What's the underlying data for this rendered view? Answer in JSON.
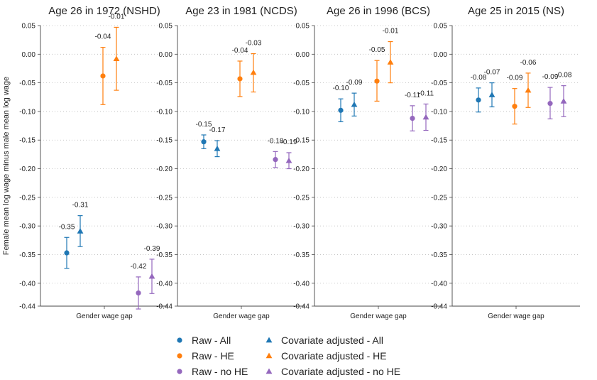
{
  "chart_data": {
    "type": "scatter",
    "subtype": "point estimates with 95% confidence intervals",
    "ylabel": "Female mean log wage minus male mean log wage",
    "xlabel": "Gender wage gap",
    "ylim": [
      -0.44,
      0.05
    ],
    "yticks": [
      0.05,
      0.0,
      -0.05,
      -0.1,
      -0.15,
      -0.2,
      -0.25,
      -0.3,
      -0.35,
      -0.4,
      -0.44
    ],
    "ytick_labels": [
      "0.05",
      "0.00",
      "-0.05",
      "-0.10",
      "-0.15",
      "-0.20",
      "-0.25",
      "-0.30",
      "-0.35",
      "-0.40",
      "-0.44"
    ],
    "grid": "horizontal dotted",
    "legend_position": "bottom",
    "series_styles": [
      {
        "name": "Raw - All",
        "color": "#1f77b4",
        "marker": "circle"
      },
      {
        "name": "Covariate adjusted - All",
        "color": "#1f77b4",
        "marker": "triangle"
      },
      {
        "name": "Raw - HE",
        "color": "#ff7f0e",
        "marker": "circle"
      },
      {
        "name": "Covariate adjusted - HE",
        "color": "#ff7f0e",
        "marker": "triangle"
      },
      {
        "name": "Raw - no HE",
        "color": "#9467bd",
        "marker": "circle"
      },
      {
        "name": "Covariate adjusted - no HE",
        "color": "#9467bd",
        "marker": "triangle"
      }
    ],
    "panels": [
      {
        "title": "Age 26 in 1972 (NSHD)",
        "points": [
          {
            "series": "Raw - All",
            "value": -0.347,
            "ci": [
              -0.374,
              -0.32
            ],
            "label": "-0.35"
          },
          {
            "series": "Covariate adjusted - All",
            "value": -0.309,
            "ci": [
              -0.336,
              -0.282
            ],
            "label": "-0.31"
          },
          {
            "series": "Raw - HE",
            "value": -0.038,
            "ci": [
              -0.088,
              0.012
            ],
            "label": "-0.04"
          },
          {
            "series": "Covariate adjusted - HE",
            "value": -0.008,
            "ci": [
              -0.063,
              0.047
            ],
            "label": "-0.01"
          },
          {
            "series": "Raw - no HE",
            "value": -0.417,
            "ci": [
              -0.445,
              -0.389
            ],
            "label": "-0.42"
          },
          {
            "series": "Covariate adjusted - no HE",
            "value": -0.388,
            "ci": [
              -0.418,
              -0.358
            ],
            "label": "-0.39"
          }
        ]
      },
      {
        "title": "Age 23 in 1981 (NCDS)",
        "points": [
          {
            "series": "Raw - All",
            "value": -0.153,
            "ci": [
              -0.165,
              -0.141
            ],
            "label": "-0.15"
          },
          {
            "series": "Covariate adjusted - All",
            "value": -0.165,
            "ci": [
              -0.179,
              -0.151
            ],
            "label": "-0.17"
          },
          {
            "series": "Raw - HE",
            "value": -0.043,
            "ci": [
              -0.074,
              -0.012
            ],
            "label": "-0.04"
          },
          {
            "series": "Covariate adjusted - HE",
            "value": -0.032,
            "ci": [
              -0.066,
              0.001
            ],
            "label": "-0.03"
          },
          {
            "series": "Raw - no HE",
            "value": -0.184,
            "ci": [
              -0.198,
              -0.17
            ],
            "label": "-0.18"
          },
          {
            "series": "Covariate adjusted - no HE",
            "value": -0.186,
            "ci": [
              -0.2,
              -0.172
            ],
            "label": "-0.19"
          }
        ]
      },
      {
        "title": "Age 26 in 1996 (BCS)",
        "points": [
          {
            "series": "Raw - All",
            "value": -0.098,
            "ci": [
              -0.118,
              -0.078
            ],
            "label": "-0.10"
          },
          {
            "series": "Covariate adjusted - All",
            "value": -0.088,
            "ci": [
              -0.108,
              -0.068
            ],
            "label": "-0.09"
          },
          {
            "series": "Raw - HE",
            "value": -0.047,
            "ci": [
              -0.082,
              -0.011
            ],
            "label": "-0.05"
          },
          {
            "series": "Covariate adjusted - HE",
            "value": -0.014,
            "ci": [
              -0.05,
              0.022
            ],
            "label": "-0.01"
          },
          {
            "series": "Raw - no HE",
            "value": -0.112,
            "ci": [
              -0.134,
              -0.09
            ],
            "label": "-0.11"
          },
          {
            "series": "Covariate adjusted - no HE",
            "value": -0.11,
            "ci": [
              -0.133,
              -0.087
            ],
            "label": "-0.11"
          }
        ]
      },
      {
        "title": "Age 25 in 2015 (NS)",
        "points": [
          {
            "series": "Raw - All",
            "value": -0.08,
            "ci": [
              -0.101,
              -0.059
            ],
            "label": "-0.08"
          },
          {
            "series": "Covariate adjusted - All",
            "value": -0.071,
            "ci": [
              -0.092,
              -0.05
            ],
            "label": "-0.07"
          },
          {
            "series": "Raw - HE",
            "value": -0.091,
            "ci": [
              -0.122,
              -0.06
            ],
            "label": "-0.09"
          },
          {
            "series": "Covariate adjusted - HE",
            "value": -0.063,
            "ci": [
              -0.093,
              -0.033
            ],
            "label": "-0.06"
          },
          {
            "series": "Raw - no HE",
            "value": -0.086,
            "ci": [
              -0.113,
              -0.058
            ],
            "label": "-0.09"
          },
          {
            "series": "Covariate adjusted - no HE",
            "value": -0.082,
            "ci": [
              -0.109,
              -0.055
            ],
            "label": "-0.08"
          }
        ]
      }
    ]
  },
  "legend": {
    "items": [
      {
        "label": "Raw - All",
        "color": "#1f77b4",
        "marker": "circle"
      },
      {
        "label": "Covariate adjusted - All",
        "color": "#1f77b4",
        "marker": "triangle"
      },
      {
        "label": "Raw - HE",
        "color": "#ff7f0e",
        "marker": "circle"
      },
      {
        "label": "Covariate adjusted - HE",
        "color": "#ff7f0e",
        "marker": "triangle"
      },
      {
        "label": "Raw - no HE",
        "color": "#9467bd",
        "marker": "circle"
      },
      {
        "label": "Covariate adjusted - no HE",
        "color": "#9467bd",
        "marker": "triangle"
      }
    ]
  }
}
